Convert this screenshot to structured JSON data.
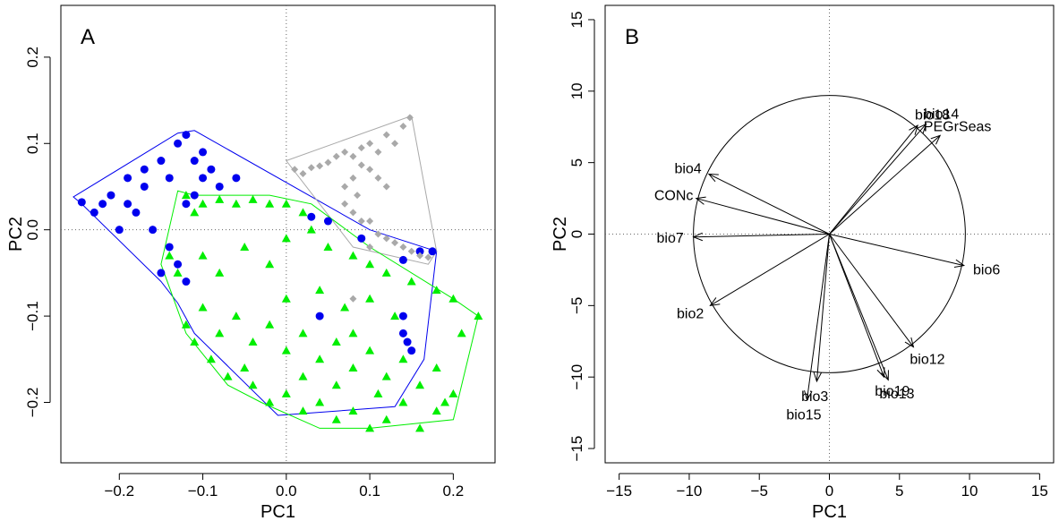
{
  "chart_data": [
    {
      "type": "scatter",
      "panel_label": "A",
      "xlabel": "PC1",
      "ylabel": "PC2",
      "xlim": [
        -0.27,
        0.25
      ],
      "ylim": [
        -0.27,
        0.26
      ],
      "xticks": [
        -0.2,
        -0.1,
        0.0,
        0.1,
        0.2
      ],
      "xtick_labels": [
        "−0.2",
        "−0.1",
        "0.0",
        "0.1",
        "0.2"
      ],
      "yticks": [
        -0.2,
        -0.1,
        0.0,
        0.1,
        0.2
      ],
      "ytick_labels": [
        "−0.2",
        "−0.1",
        "0.0",
        "0.1",
        "0.2"
      ],
      "reference_lines": {
        "x": 0,
        "y": 0,
        "style": "dotted"
      },
      "series": [
        {
          "marker": "circle",
          "color": "#0000ee",
          "hull": [
            [
              -0.255,
              0.038
            ],
            [
              -0.245,
              0.03
            ],
            [
              -0.15,
              -0.06
            ],
            [
              -0.13,
              -0.085
            ],
            [
              -0.11,
              -0.12
            ],
            [
              -0.01,
              -0.215
            ],
            [
              0.13,
              -0.205
            ],
            [
              0.165,
              -0.15
            ],
            [
              0.18,
              -0.025
            ],
            [
              0.1,
              0.0
            ],
            [
              -0.11,
              0.115
            ],
            [
              -0.13,
              0.112
            ]
          ],
          "points": [
            [
              -0.245,
              0.032
            ],
            [
              -0.23,
              0.02
            ],
            [
              -0.21,
              0.04
            ],
            [
              -0.19,
              0.06
            ],
            [
              -0.17,
              0.05
            ],
            [
              -0.15,
              0.08
            ],
            [
              -0.13,
              0.1
            ],
            [
              -0.12,
              0.11
            ],
            [
              -0.1,
              0.09
            ],
            [
              -0.09,
              0.07
            ],
            [
              -0.08,
              0.05
            ],
            [
              -0.2,
              0.0
            ],
            [
              -0.18,
              0.02
            ],
            [
              -0.16,
              0.0
            ],
            [
              -0.14,
              -0.02
            ],
            [
              -0.15,
              -0.05
            ],
            [
              -0.12,
              0.03
            ],
            [
              -0.1,
              0.06
            ],
            [
              -0.06,
              0.06
            ],
            [
              0.03,
              0.015
            ],
            [
              0.05,
              0.01
            ],
            [
              0.09,
              -0.01
            ],
            [
              0.14,
              -0.035
            ],
            [
              0.16,
              -0.025
            ],
            [
              0.175,
              -0.025
            ],
            [
              0.04,
              -0.1
            ],
            [
              0.14,
              -0.12
            ],
            [
              0.145,
              -0.13
            ],
            [
              0.15,
              -0.14
            ],
            [
              0.14,
              -0.1
            ],
            [
              -0.22,
              0.03
            ],
            [
              -0.19,
              0.03
            ],
            [
              -0.17,
              0.07
            ],
            [
              -0.14,
              0.06
            ],
            [
              -0.11,
              0.08
            ],
            [
              -0.11,
              0.04
            ],
            [
              -0.13,
              -0.04
            ],
            [
              -0.12,
              -0.06
            ]
          ]
        },
        {
          "marker": "diamond",
          "color": "#a9a9a9",
          "hull": [
            [
              0.15,
              0.132
            ],
            [
              0.18,
              -0.025
            ],
            [
              0.17,
              -0.04
            ],
            [
              0.08,
              -0.02
            ],
            [
              0.0,
              0.08
            ]
          ],
          "points": [
            [
              0.148,
              0.13
            ],
            [
              0.14,
              0.12
            ],
            [
              0.13,
              0.1
            ],
            [
              0.12,
              0.11
            ],
            [
              0.11,
              0.09
            ],
            [
              0.1,
              0.1
            ],
            [
              0.09,
              0.095
            ],
            [
              0.08,
              0.085
            ],
            [
              0.07,
              0.09
            ],
            [
              0.06,
              0.085
            ],
            [
              0.05,
              0.078
            ],
            [
              0.04,
              0.074
            ],
            [
              0.03,
              0.072
            ],
            [
              0.02,
              0.065
            ],
            [
              0.01,
              0.07
            ],
            [
              0.08,
              0.06
            ],
            [
              0.085,
              0.04
            ],
            [
              0.08,
              0.02
            ],
            [
              0.09,
              0.01
            ],
            [
              0.1,
              0.01
            ],
            [
              0.11,
              -0.005
            ],
            [
              0.12,
              -0.01
            ],
            [
              0.13,
              -0.015
            ],
            [
              0.14,
              -0.02
            ],
            [
              0.15,
              -0.025
            ],
            [
              0.16,
              -0.03
            ],
            [
              0.17,
              -0.032
            ],
            [
              0.1,
              0.07
            ],
            [
              0.11,
              0.06
            ],
            [
              0.12,
              0.05
            ],
            [
              0.09,
              0.075
            ],
            [
              0.07,
              0.05
            ],
            [
              0.07,
              0.03
            ],
            [
              0.1,
              -0.02
            ],
            [
              0.08,
              -0.08
            ]
          ]
        },
        {
          "marker": "triangle",
          "color": "#00ee00",
          "hull": [
            [
              -0.13,
              0.045
            ],
            [
              -0.15,
              -0.04
            ],
            [
              -0.12,
              -0.12
            ],
            [
              -0.07,
              -0.18
            ],
            [
              -0.03,
              -0.2
            ],
            [
              0.04,
              -0.23
            ],
            [
              0.1,
              -0.23
            ],
            [
              0.2,
              -0.22
            ],
            [
              0.23,
              -0.1
            ],
            [
              0.2,
              -0.08
            ],
            [
              0.1,
              -0.02
            ],
            [
              0.03,
              0.03
            ],
            [
              -0.02,
              0.04
            ],
            [
              -0.11,
              0.04
            ]
          ],
          "points": [
            [
              -0.12,
              0.04
            ],
            [
              -0.11,
              0.02
            ],
            [
              -0.1,
              0.03
            ],
            [
              -0.08,
              0.035
            ],
            [
              -0.06,
              0.03
            ],
            [
              -0.04,
              0.035
            ],
            [
              -0.02,
              0.03
            ],
            [
              0.0,
              0.03
            ],
            [
              0.02,
              0.02
            ],
            [
              -0.14,
              -0.03
            ],
            [
              -0.13,
              -0.05
            ],
            [
              -0.1,
              -0.03
            ],
            [
              -0.08,
              -0.05
            ],
            [
              -0.05,
              -0.02
            ],
            [
              -0.02,
              -0.04
            ],
            [
              0.0,
              -0.01
            ],
            [
              0.03,
              0.0
            ],
            [
              0.05,
              -0.02
            ],
            [
              0.08,
              -0.03
            ],
            [
              0.1,
              -0.04
            ],
            [
              0.12,
              -0.05
            ],
            [
              0.15,
              -0.06
            ],
            [
              0.18,
              -0.07
            ],
            [
              0.2,
              -0.08
            ],
            [
              0.23,
              -0.1
            ],
            [
              0.21,
              -0.12
            ],
            [
              -0.12,
              -0.11
            ],
            [
              -0.1,
              -0.09
            ],
            [
              -0.08,
              -0.12
            ],
            [
              -0.06,
              -0.1
            ],
            [
              -0.04,
              -0.13
            ],
            [
              -0.02,
              -0.11
            ],
            [
              0.0,
              -0.14
            ],
            [
              0.02,
              -0.12
            ],
            [
              0.04,
              -0.15
            ],
            [
              0.06,
              -0.13
            ],
            [
              0.08,
              -0.16
            ],
            [
              0.1,
              -0.14
            ],
            [
              0.12,
              -0.17
            ],
            [
              0.14,
              -0.15
            ],
            [
              0.16,
              -0.18
            ],
            [
              0.18,
              -0.16
            ],
            [
              0.2,
              -0.19
            ],
            [
              -0.04,
              -0.18
            ],
            [
              -0.02,
              -0.2
            ],
            [
              0.0,
              -0.19
            ],
            [
              0.02,
              -0.21
            ],
            [
              0.04,
              -0.2
            ],
            [
              0.06,
              -0.22
            ],
            [
              0.08,
              -0.21
            ],
            [
              0.1,
              -0.23
            ],
            [
              0.12,
              -0.22
            ],
            [
              0.14,
              -0.2
            ],
            [
              0.16,
              -0.23
            ],
            [
              0.18,
              -0.21
            ],
            [
              0.19,
              -0.2
            ],
            [
              -0.07,
              -0.17
            ],
            [
              -0.05,
              -0.16
            ],
            [
              0.0,
              -0.08
            ],
            [
              0.04,
              -0.07
            ],
            [
              0.07,
              -0.09
            ],
            [
              0.1,
              -0.08
            ],
            [
              0.13,
              -0.1
            ],
            [
              0.06,
              -0.18
            ],
            [
              0.11,
              -0.19
            ],
            [
              -0.09,
              -0.15
            ],
            [
              -0.11,
              -0.13
            ],
            [
              0.02,
              -0.17
            ],
            [
              0.08,
              -0.12
            ]
          ]
        }
      ]
    },
    {
      "type": "biplot",
      "panel_label": "B",
      "xlabel": "PC1",
      "ylabel": "PC2",
      "xlim": [
        -16,
        16
      ],
      "ylim": [
        -16,
        16
      ],
      "xticks": [
        -15,
        -10,
        -5,
        0,
        5,
        10,
        15
      ],
      "xtick_labels": [
        "−15",
        "−10",
        "−5",
        "0",
        "5",
        "10",
        "15"
      ],
      "yticks": [
        -15,
        -10,
        -5,
        0,
        5,
        10,
        15
      ],
      "ytick_labels": [
        "−15",
        "−10",
        "−5",
        "0",
        "5",
        "10",
        "15"
      ],
      "circle_radius": 9.7,
      "reference_lines": {
        "x": 0,
        "y": 0,
        "style": "dotted"
      },
      "vectors": [
        {
          "name": "bio18",
          "x": 6.3,
          "y": 7.6
        },
        {
          "name": "bio14",
          "x": 6.9,
          "y": 7.7
        },
        {
          "name": "PEGrSeas",
          "x": 7.9,
          "y": 6.9
        },
        {
          "name": "bio4",
          "x": -8.6,
          "y": 4.2
        },
        {
          "name": "CONc",
          "x": -9.5,
          "y": 2.5
        },
        {
          "name": "bio7",
          "x": -9.7,
          "y": -0.2
        },
        {
          "name": "bio6",
          "x": 9.6,
          "y": -2.2
        },
        {
          "name": "bio2",
          "x": -8.5,
          "y": -5.0
        },
        {
          "name": "bio12",
          "x": 6.0,
          "y": -7.9
        },
        {
          "name": "bio13",
          "x": 4.2,
          "y": -10.2
        },
        {
          "name": "bio19",
          "x": 3.9,
          "y": -10.0
        },
        {
          "name": "bio3",
          "x": -0.9,
          "y": -10.3
        },
        {
          "name": "bio15",
          "x": -1.6,
          "y": -11.6
        }
      ]
    }
  ]
}
